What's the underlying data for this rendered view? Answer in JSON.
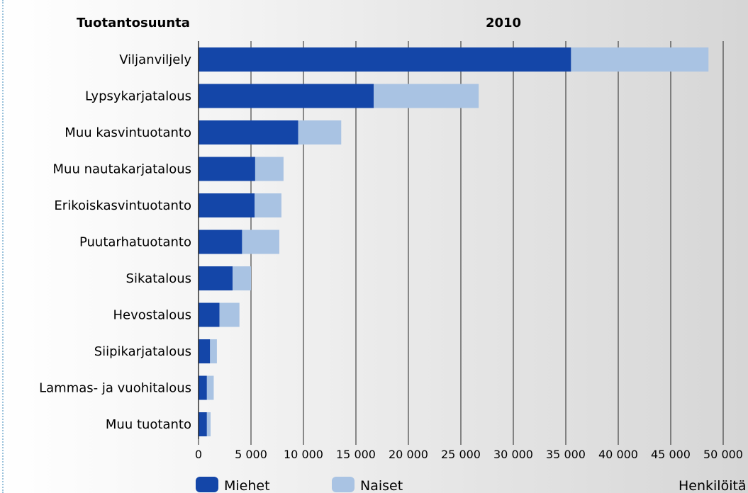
{
  "chart_data": {
    "type": "bar",
    "orientation": "horizontal",
    "stacked": true,
    "category_title": "Tuotantosuunta",
    "title": "2010",
    "xlabel": "Henkilöitä",
    "categories": [
      "Viljanviljely",
      "Lypsykarjatalous",
      "Muu kasvintuotanto",
      "Muu nautakarjatalous",
      "Erikoiskasvintuotanto",
      "Puutarhatuotanto",
      "Sikatalous",
      "Hevostalous",
      "Siipikarjatalous",
      "Lammas- ja vuohitalous",
      "Muu tuotanto"
    ],
    "series": [
      {
        "name": "Miehet",
        "color": "#1446a8",
        "values": [
          35500,
          16700,
          9500,
          5400,
          5350,
          4150,
          3250,
          2000,
          1100,
          800,
          800
        ]
      },
      {
        "name": "Naiset",
        "color": "#a9c3e3",
        "values": [
          13100,
          10000,
          4100,
          2700,
          2550,
          3550,
          1750,
          1900,
          650,
          650,
          350
        ]
      }
    ],
    "xlim": [
      0,
      50000
    ],
    "xticks": [
      0,
      5000,
      10000,
      15000,
      20000,
      25000,
      30000,
      35000,
      40000,
      45000,
      50000
    ],
    "xtick_labels": [
      "0",
      "5 000",
      "10 000",
      "15 000",
      "20 000",
      "25 000",
      "30 000",
      "35 000",
      "40 000",
      "45 000",
      "50 000"
    ],
    "grid": "vertical",
    "legend_position": "bottom-left"
  }
}
